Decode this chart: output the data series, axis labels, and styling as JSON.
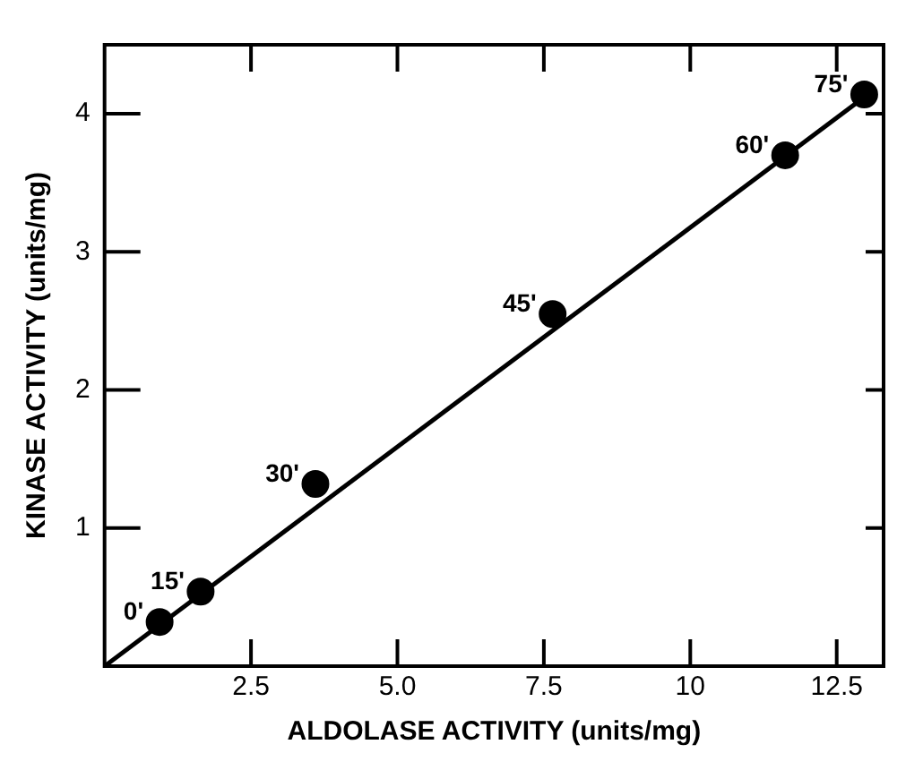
{
  "chart_data": {
    "type": "scatter",
    "xlabel": "ALDOLASE ACTIVITY (units/mg)",
    "ylabel": "KINASE ACTIVITY (units/mg)",
    "xlim": [
      0,
      13.3
    ],
    "ylim": [
      0,
      4.5
    ],
    "xticks": [
      2.5,
      {
        "value": 5,
        "label": "5.0"
      },
      7.5,
      10,
      12.5
    ],
    "yticks": [
      1,
      2,
      3,
      4
    ],
    "grid": false,
    "legend": false,
    "marker": "circle",
    "series": [
      {
        "color": "#000000",
        "x": [
          0.94,
          1.64,
          3.6,
          7.65,
          11.62,
          12.97
        ],
        "values": [
          0.32,
          0.54,
          1.32,
          2.55,
          3.7,
          4.14
        ]
      },
      {
        "type": "line",
        "color": "#000000",
        "marker": "none",
        "line_style": "solid",
        "x": [
          0,
          12.97
        ],
        "values": [
          0,
          4.12
        ]
      }
    ],
    "annotations": [
      {
        "text": "0'",
        "x": 0.94,
        "y": 0.32
      },
      {
        "text": "15'",
        "x": 1.64,
        "y": 0.54
      },
      {
        "text": "30'",
        "x": 3.6,
        "y": 1.32
      },
      {
        "text": "45'",
        "x": 7.65,
        "y": 2.55
      },
      {
        "text": "60'",
        "x": 11.62,
        "y": 3.7
      },
      {
        "text": "75'",
        "x": 12.97,
        "y": 4.14
      }
    ]
  }
}
